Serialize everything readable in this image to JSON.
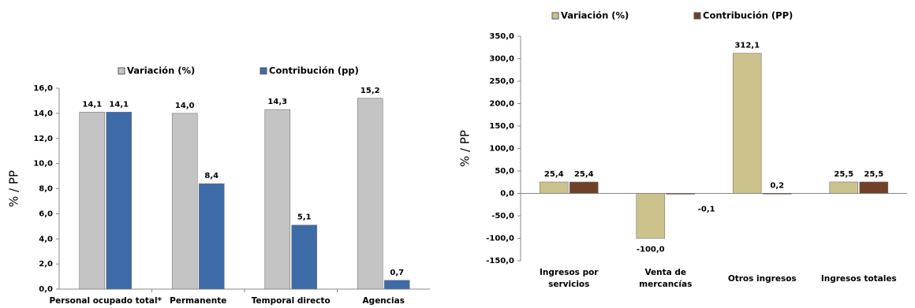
{
  "chart_data": [
    {
      "type": "bar",
      "y_label": "% / PP",
      "categories": [
        "Personal ocupado total*",
        "Permanente",
        "Temporal directo",
        "Agencias"
      ],
      "series": [
        {
          "name": "Variación (%)",
          "color": "#c4c4c4",
          "values": [
            14.1,
            14.0,
            14.3,
            15.2
          ],
          "value_labels": [
            "14,1",
            "14,0",
            "14,3",
            "15,2"
          ]
        },
        {
          "name": "Contribución (pp)",
          "color": "#3d6ba8",
          "values": [
            14.1,
            8.4,
            5.1,
            0.7
          ],
          "value_labels": [
            "14,1",
            "8,4",
            "5,1",
            "0,7"
          ]
        }
      ],
      "ylim": [
        0,
        16
      ],
      "yticks": [
        {
          "value": 0,
          "label": "0,0"
        },
        {
          "value": 2,
          "label": "2,0"
        },
        {
          "value": 4,
          "label": "4,0"
        },
        {
          "value": 6,
          "label": "6,0"
        },
        {
          "value": 8,
          "label": "8,0"
        },
        {
          "value": 10,
          "label": "10,0"
        },
        {
          "value": 12,
          "label": "12,0"
        },
        {
          "value": 14,
          "label": "14,0"
        },
        {
          "value": 16,
          "label": "16,0"
        }
      ],
      "grid": false
    },
    {
      "type": "bar",
      "y_label": "% / PP",
      "categories": [
        "Ingresos por servicios",
        "Venta de mercancías",
        "Otros ingresos",
        "Ingresos totales"
      ],
      "series": [
        {
          "name": "Variación (%)",
          "color": "#cbc28c",
          "values": [
            25.4,
            -100.0,
            312.1,
            25.5
          ],
          "value_labels": [
            "25,4",
            "-100,0",
            "312,1",
            "25,5"
          ]
        },
        {
          "name": "Contribución (PP)",
          "color": "#6e4128",
          "values": [
            25.4,
            -0.1,
            0.2,
            25.5
          ],
          "value_labels": [
            "25,4",
            "-0,1",
            "0,2",
            "25,5"
          ]
        }
      ],
      "ylim": [
        -150,
        350
      ],
      "yticks": [
        {
          "value": -150,
          "label": "-150,0"
        },
        {
          "value": -100,
          "label": "-100,0"
        },
        {
          "value": -50,
          "label": "-50,0"
        },
        {
          "value": 0,
          "label": "0,0"
        },
        {
          "value": 50,
          "label": "50,0"
        },
        {
          "value": 100,
          "label": "100,0"
        },
        {
          "value": 150,
          "label": "150,0"
        },
        {
          "value": 200,
          "label": "200,0"
        },
        {
          "value": 250,
          "label": "250,0"
        },
        {
          "value": 300,
          "label": "300,0"
        },
        {
          "value": 350,
          "label": "350,0"
        }
      ],
      "grid": false
    }
  ]
}
